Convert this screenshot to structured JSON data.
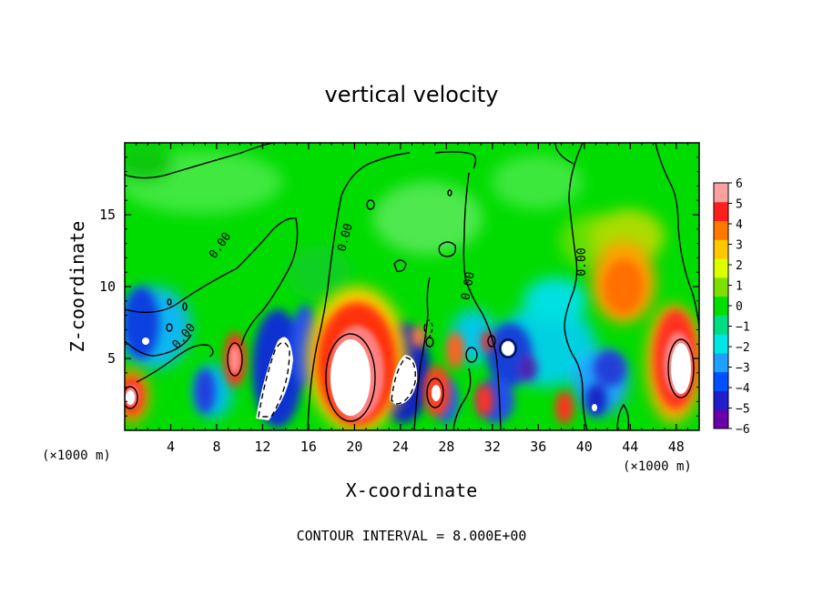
{
  "chart_data": {
    "type": "heatmap",
    "title": "vertical velocity",
    "xlabel": "X-coordinate",
    "ylabel": "Z-coordinate",
    "x_unit": "(×1000 m)",
    "xlim": [
      0,
      50
    ],
    "ylim": [
      0,
      20
    ],
    "x_ticks": [
      4,
      8,
      12,
      16,
      20,
      24,
      28,
      32,
      36,
      40,
      44,
      48
    ],
    "y_ticks": [
      5,
      10,
      15
    ],
    "colorbar": {
      "min": -6,
      "max": 6,
      "labels": [
        "6",
        "5",
        "4",
        "3",
        "2",
        "1",
        "0",
        "−1",
        "−2",
        "−3",
        "−4",
        "−5",
        "−6"
      ],
      "colors": [
        "#6a00a8",
        "#1f1fcc",
        "#0050ff",
        "#1ea0ff",
        "#00e6e6",
        "#00dc82",
        "#00e000",
        "#7ee000",
        "#dcff00",
        "#ffc800",
        "#ff7800",
        "#ff1e1e",
        "#ffa0a0"
      ]
    },
    "contour_labels": [
      "0.00",
      "0.00",
      "0.00",
      "0.00",
      "0.00"
    ],
    "contour_interval_text": "CONTOUR INTERVAL = 8.000E+00",
    "features": [
      {
        "x": 19.5,
        "z": 3.5,
        "w": 7,
        "sign": 1,
        "note": "strong updraft"
      },
      {
        "x": 48.5,
        "z": 5.0,
        "w": 6.5,
        "sign": 1
      },
      {
        "x": 0.8,
        "z": 2.5,
        "w": 5,
        "sign": 1
      },
      {
        "x": 44,
        "z": 10,
        "w": 3.5,
        "sign": 1
      },
      {
        "x": 13,
        "z": 3.5,
        "w": -7,
        "sign": -1,
        "note": "strong downdraft"
      },
      {
        "x": 24.5,
        "z": 3.0,
        "w": -6.5,
        "sign": -1
      },
      {
        "x": 1.5,
        "z": 6.5,
        "w": -4.5,
        "sign": -1
      },
      {
        "x": 34,
        "z": 5.0,
        "w": -4,
        "sign": -1
      }
    ]
  }
}
